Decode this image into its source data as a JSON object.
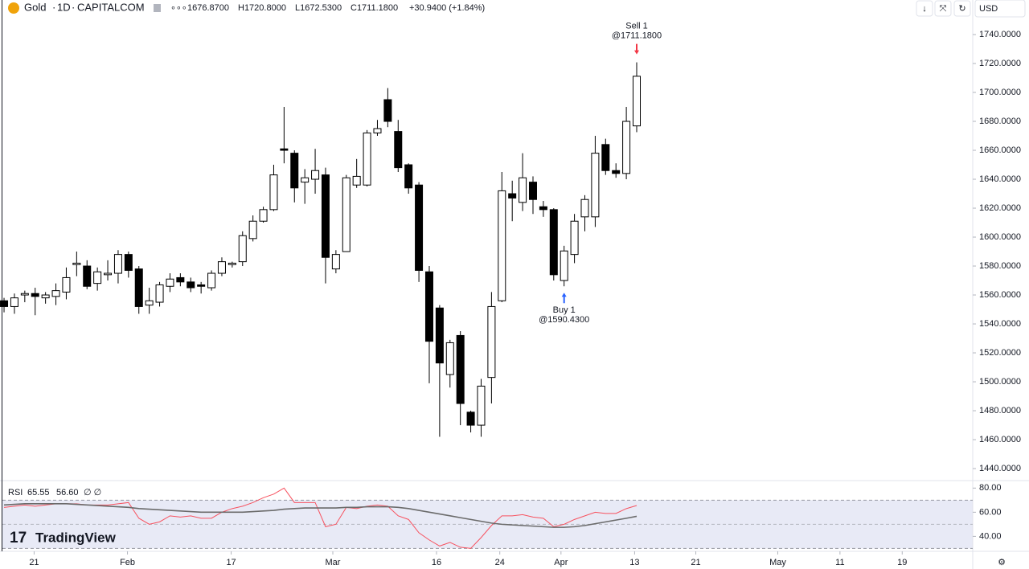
{
  "header": {
    "symbol": "Gold",
    "interval": "1D",
    "exchange": "CAPITALCOM",
    "open": "1676.8700",
    "high": "H1720.8000",
    "low": "L1672.5300",
    "close": "C1711.1800",
    "change": "+30.9400 (+1.84%)"
  },
  "currency": "USD",
  "watermark": "TradingView",
  "chart_data": [
    {
      "type": "candlestick",
      "up_color": "#ffffff",
      "down_color": "#000000",
      "border_color": "#000000",
      "open": [
        1556,
        1552,
        1560,
        1561,
        1558,
        1559,
        1562,
        1581,
        1580,
        1568,
        1574,
        1575,
        1588,
        1578,
        1553,
        1555,
        1566,
        1572,
        1569,
        1567,
        1565,
        1575,
        1581,
        1583,
        1599,
        1611,
        1619,
        1661,
        1658,
        1638,
        1640,
        1643,
        1578,
        1590,
        1636,
        1636,
        1672,
        1695,
        1673,
        1650,
        1636,
        1576,
        1551,
        1505,
        1532,
        1479,
        1470,
        1503,
        1556,
        1630,
        1624,
        1638,
        1621,
        1619,
        1570,
        1588,
        1614,
        1614,
        1664,
        1646,
        1644,
        1676.87
      ],
      "high": [
        1558,
        1561,
        1563,
        1565,
        1562,
        1568,
        1579,
        1590,
        1584,
        1579,
        1584,
        1591,
        1590,
        1580,
        1565,
        1569,
        1575,
        1575,
        1572,
        1569,
        1577,
        1586,
        1583,
        1604,
        1615,
        1621,
        1650,
        1690,
        1660,
        1647,
        1661,
        1648,
        1591,
        1643,
        1654,
        1674,
        1681,
        1703,
        1681,
        1651,
        1638,
        1580,
        1553,
        1529,
        1535,
        1480,
        1502,
        1562,
        1645,
        1639,
        1658,
        1642,
        1625,
        1620,
        1594,
        1616,
        1629,
        1670,
        1668,
        1651,
        1690,
        1720.8
      ],
      "low": [
        1548,
        1547,
        1555,
        1546,
        1554,
        1553,
        1557,
        1573,
        1564,
        1563,
        1570,
        1568,
        1572,
        1547,
        1547,
        1552,
        1562,
        1566,
        1562,
        1561,
        1563,
        1573,
        1579,
        1580,
        1597,
        1610,
        1618,
        1651,
        1624,
        1623,
        1630,
        1568,
        1575,
        1590,
        1634,
        1635,
        1670,
        1676,
        1645,
        1630,
        1569,
        1499,
        1462,
        1496,
        1470,
        1465,
        1462,
        1485,
        1555,
        1611,
        1618,
        1616,
        1614,
        1570,
        1566,
        1582,
        1604,
        1607,
        1643,
        1641,
        1640,
        1672.53
      ],
      "close": [
        1552,
        1558,
        1561,
        1559,
        1560,
        1563,
        1572,
        1582,
        1566,
        1576,
        1575,
        1588,
        1577,
        1552,
        1556,
        1567,
        1571,
        1569,
        1565,
        1566,
        1575,
        1583,
        1582,
        1601,
        1611,
        1619,
        1643,
        1660,
        1634,
        1641,
        1646,
        1586,
        1588,
        1641,
        1642,
        1672,
        1675,
        1680,
        1648,
        1634,
        1577,
        1528,
        1513,
        1527,
        1485,
        1470,
        1497,
        1552,
        1632,
        1627,
        1641,
        1626,
        1619,
        1574,
        1590.43,
        1611,
        1626,
        1658,
        1646,
        1644,
        1680,
        1711.18
      ],
      "ylim": [
        1431.7,
        1750
      ],
      "yticks": [
        {
          "value": 1440,
          "label": "1440.0000"
        },
        {
          "value": 1460,
          "label": "1460.0000"
        },
        {
          "value": 1480,
          "label": "1480.0000"
        },
        {
          "value": 1500,
          "label": "1500.0000"
        },
        {
          "value": 1520,
          "label": "1520.0000"
        },
        {
          "value": 1540,
          "label": "1540.0000"
        },
        {
          "value": 1560,
          "label": "1560.0000"
        },
        {
          "value": 1580,
          "label": "1580.0000"
        },
        {
          "value": 1600,
          "label": "1600.0000"
        },
        {
          "value": 1620,
          "label": "1620.0000"
        },
        {
          "value": 1640,
          "label": "1640.0000"
        },
        {
          "value": 1660,
          "label": "1660.0000"
        },
        {
          "value": 1680,
          "label": "1680.0000"
        },
        {
          "value": 1700,
          "label": "1700.0000"
        },
        {
          "value": 1720,
          "label": "1720.0000"
        },
        {
          "value": 1740,
          "label": "1740.0000"
        }
      ],
      "xlim": [
        -0.39,
        93.4
      ],
      "xticks": [
        {
          "value": 2.9,
          "label": "21"
        },
        {
          "value": 11.9,
          "label": "Feb"
        },
        {
          "value": 21.9,
          "label": "17"
        },
        {
          "value": 31.7,
          "label": "Mar"
        },
        {
          "value": 41.7,
          "label": "16"
        },
        {
          "value": 47.8,
          "label": "24"
        },
        {
          "value": 53.7,
          "label": "Apr"
        },
        {
          "value": 60.8,
          "label": "13"
        },
        {
          "value": 66.7,
          "label": "21"
        },
        {
          "value": 74.6,
          "label": "May"
        },
        {
          "value": 80.6,
          "label": "11"
        },
        {
          "value": 86.6,
          "label": "19"
        }
      ],
      "annotations": [
        {
          "index": 61,
          "label": "Sell 1",
          "price": "@1711.1800",
          "color": "#f23645",
          "position": "above"
        },
        {
          "index": 54,
          "label": "Buy 1",
          "price": "@1590.4300",
          "color": "#2962ff",
          "position": "below"
        }
      ]
    },
    {
      "type": "line",
      "title": "RSI",
      "legend_labels": [
        "65.55",
        "56.60"
      ],
      "series": [
        {
          "color": "#f7525f",
          "values": [
            64,
            65,
            66,
            65,
            66,
            67,
            67,
            67,
            66,
            66,
            66,
            67,
            68,
            55,
            50,
            52,
            57,
            56,
            57,
            55,
            55,
            60,
            63,
            65,
            68,
            72,
            75,
            80,
            68,
            68,
            68,
            48,
            50,
            64,
            63,
            65,
            66,
            65,
            57,
            54,
            43,
            37,
            32,
            35,
            31,
            30,
            39,
            49,
            57,
            57,
            58,
            56,
            55,
            48,
            50,
            54,
            57,
            60,
            59,
            59,
            63,
            65.55
          ]
        },
        {
          "color": "#6b6b6b",
          "values": [
            66,
            66.5,
            67,
            67,
            67,
            67,
            67,
            66.5,
            66,
            65.5,
            65,
            64.5,
            64,
            63,
            62.5,
            62,
            61.5,
            61,
            60.5,
            60,
            60,
            60,
            60,
            60,
            60.5,
            61,
            61.5,
            62.5,
            63,
            63.5,
            63.5,
            63.5,
            63.5,
            64,
            64,
            64.5,
            64.5,
            64.5,
            64,
            63,
            61.5,
            60,
            58.5,
            57,
            55.5,
            54,
            52.5,
            51,
            50,
            49.5,
            49,
            48.5,
            48,
            47.5,
            47.5,
            48,
            49,
            50.5,
            52,
            53.5,
            55,
            56.6
          ]
        }
      ],
      "band": [
        30,
        70
      ],
      "midline": 50,
      "band_color": "#e8eaf6",
      "ylim": [
        27.6,
        86.2
      ],
      "yticks": [
        {
          "value": 40,
          "label": "40.00"
        },
        {
          "value": 60,
          "label": "60.00"
        },
        {
          "value": 80,
          "label": "80.00"
        }
      ]
    }
  ]
}
